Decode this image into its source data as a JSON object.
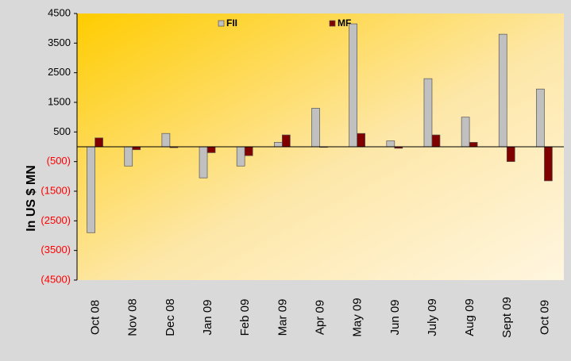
{
  "chart_data": {
    "type": "bar",
    "y_label": "In US $ MN",
    "categories": [
      "Oct 08",
      "Nov 08",
      "Dec 08",
      "Jan 09",
      "Feb 09",
      "Mar 09",
      "Apr 09",
      "May 09",
      "Jun 09",
      "July 09",
      "Aug 09",
      "Sept 09",
      "Oct 09"
    ],
    "series": [
      {
        "name": "FII",
        "color": "#c0c0c0",
        "values": [
          -2900,
          -650,
          450,
          -1050,
          -650,
          150,
          1300,
          4150,
          200,
          2300,
          1000,
          3800,
          1950
        ]
      },
      {
        "name": "MF",
        "color": "#800000",
        "values": [
          300,
          -100,
          -30,
          -200,
          -300,
          400,
          -20,
          450,
          -50,
          400,
          150,
          -500,
          -1150
        ]
      }
    ],
    "ylim": [
      -4500,
      4500
    ],
    "yticks": [
      4500,
      3500,
      2500,
      1500,
      500,
      {
        "value": -500,
        "label": "(500)"
      },
      {
        "value": -1500,
        "label": "(1500)"
      },
      {
        "value": -2500,
        "label": "(2500)"
      },
      {
        "value": -3500,
        "label": "(3500)"
      },
      {
        "value": -4500,
        "label": "(4500)"
      }
    ],
    "negative_tick_color": "#ff0000",
    "legend": "top"
  }
}
